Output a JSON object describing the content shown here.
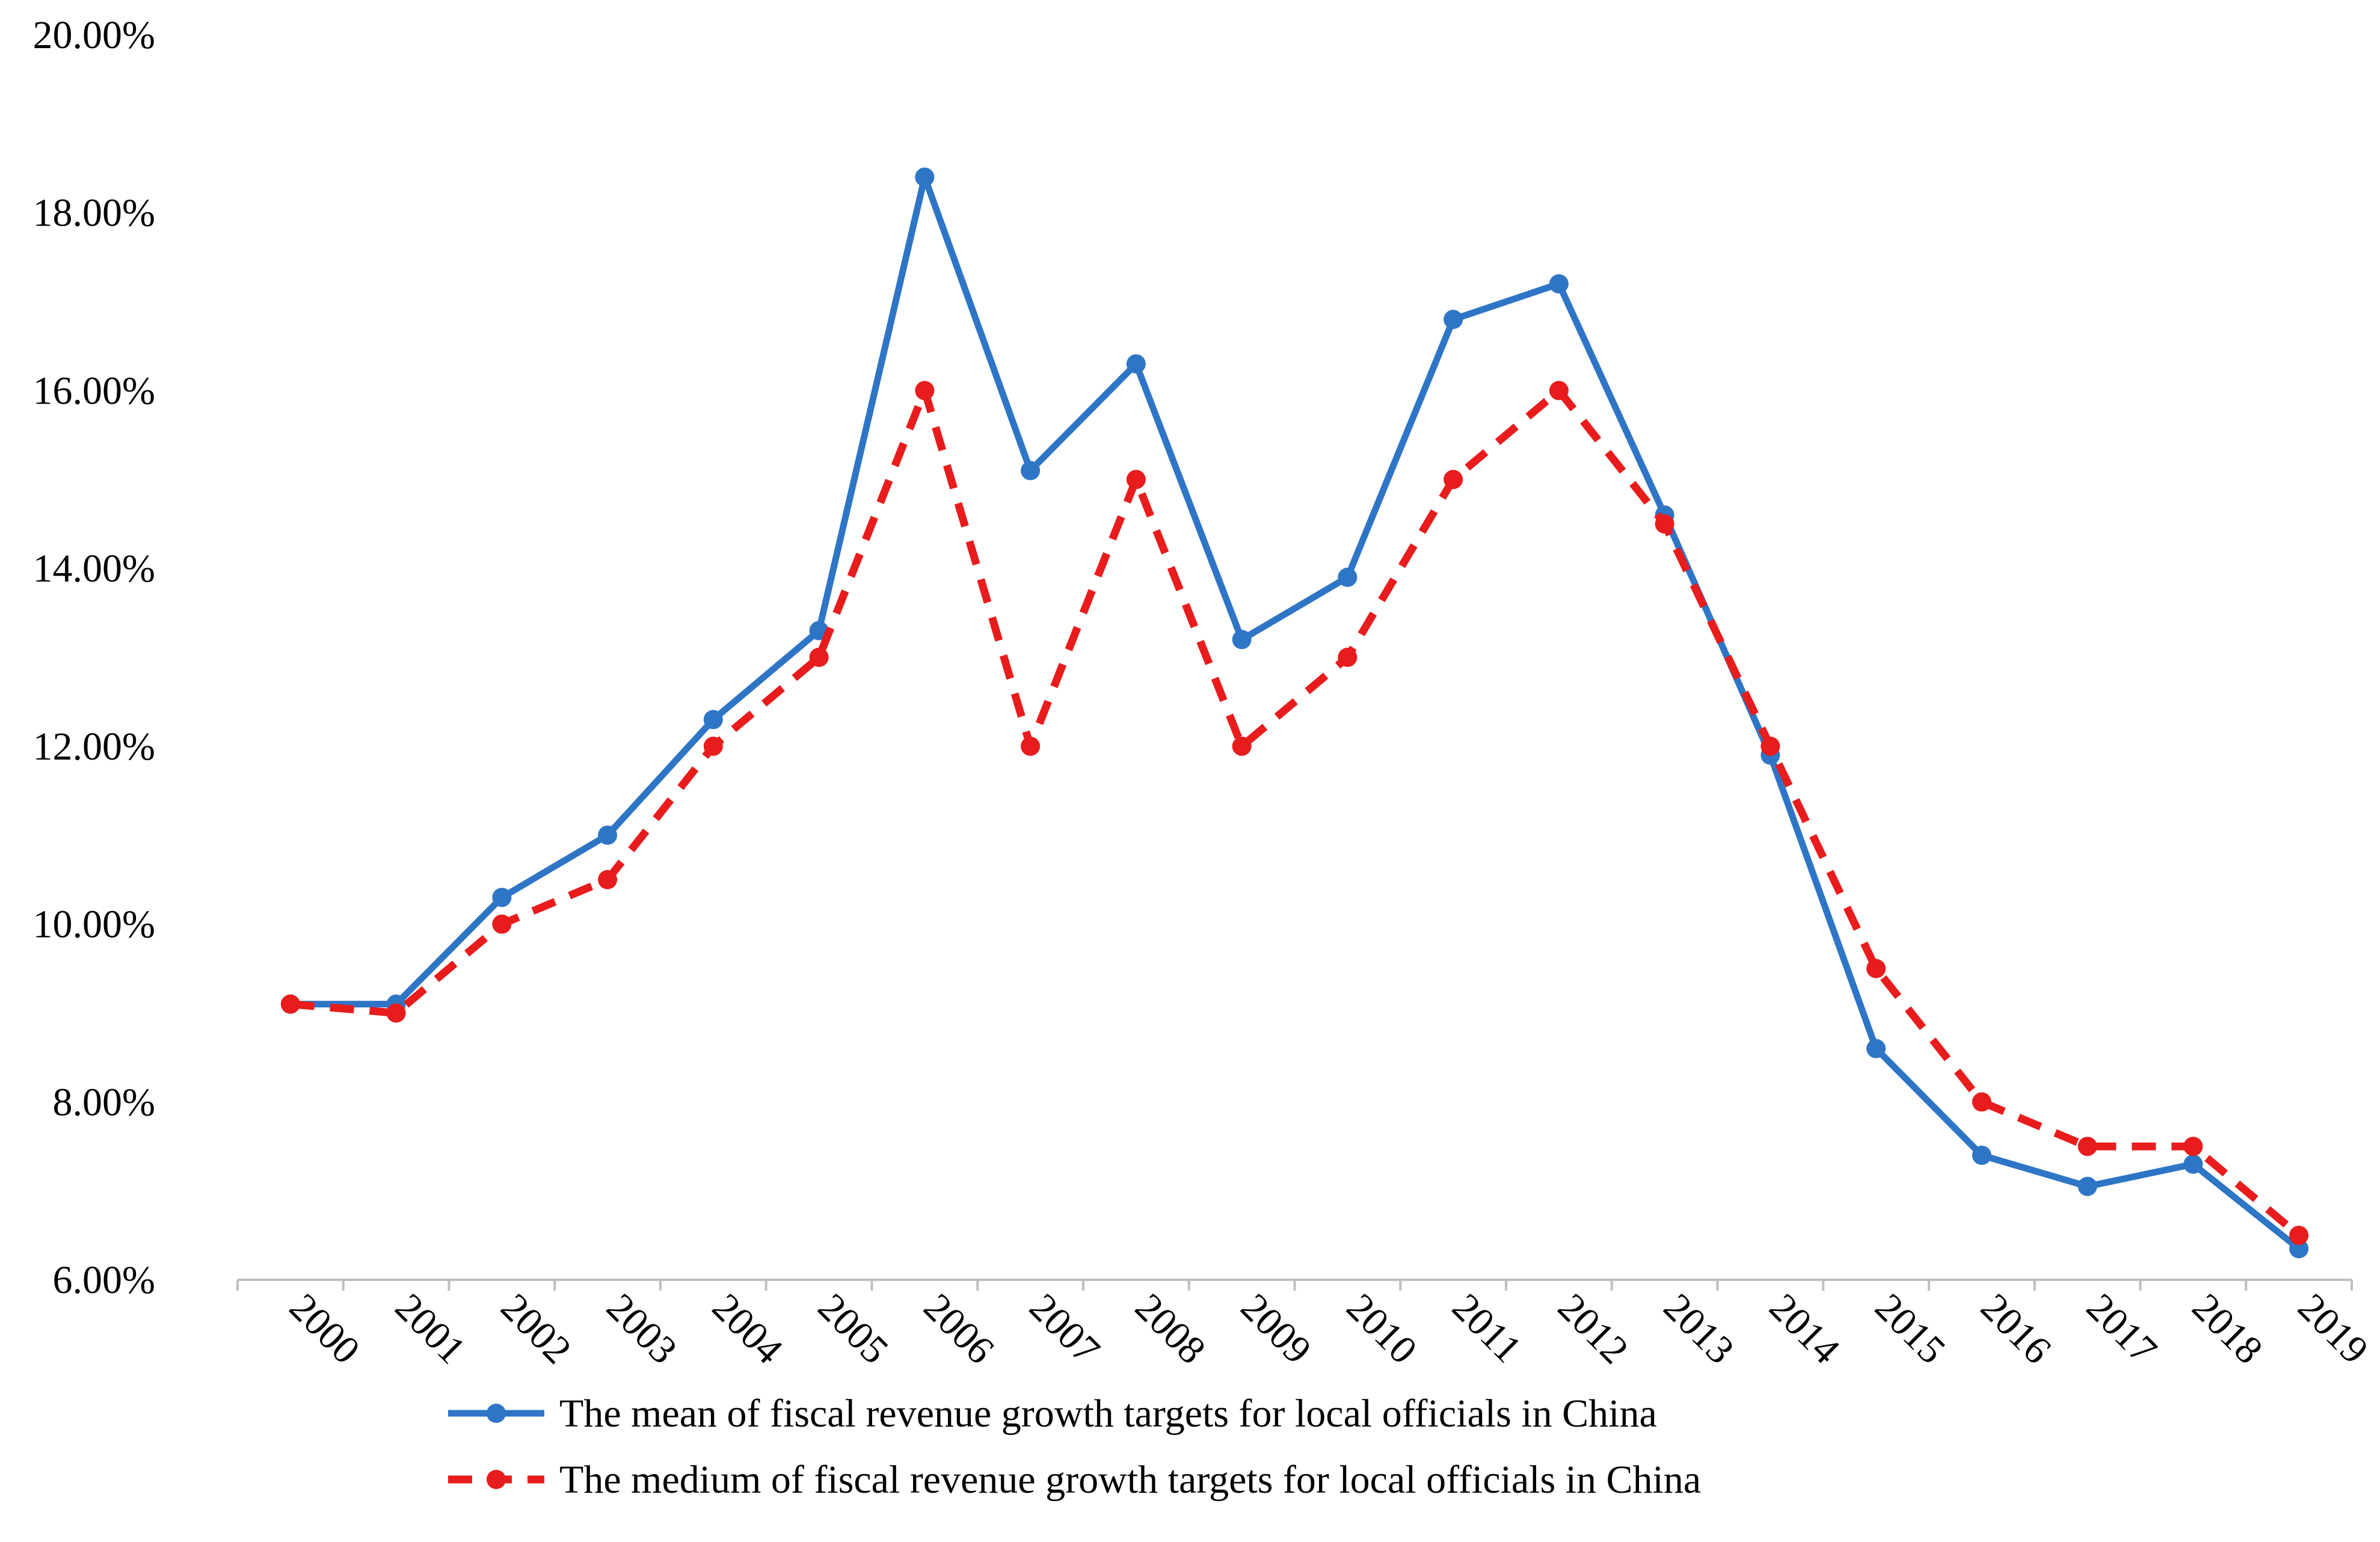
{
  "chart_data": {
    "type": "line",
    "title": "",
    "xlabel": "",
    "ylabel": "",
    "ylim": [
      6,
      20
    ],
    "yticks": [
      "6.00%",
      "8.00%",
      "10.00%",
      "12.00%",
      "14.00%",
      "16.00%",
      "18.00%",
      "20.00%"
    ],
    "categories": [
      "2000",
      "2001",
      "2002",
      "2003",
      "2004",
      "2005",
      "2006",
      "2007",
      "2008",
      "2009",
      "2010",
      "2011",
      "2012",
      "2013",
      "2014",
      "2015",
      "2016",
      "2017",
      "2018",
      "2019"
    ],
    "series": [
      {
        "name": "The mean of fiscal revenue growth targets for local officials in China",
        "color": "#2E75C6",
        "dashed": false,
        "values": [
          9.1,
          9.1,
          10.3,
          11.0,
          12.3,
          13.3,
          18.4,
          15.1,
          16.3,
          13.2,
          13.9,
          16.8,
          17.2,
          14.6,
          11.9,
          8.6,
          7.4,
          7.05,
          7.3,
          6.35
        ]
      },
      {
        "name": "The medium of fiscal revenue growth targets for local officials in China",
        "color": "#E81C1C",
        "dashed": true,
        "values": [
          9.1,
          9.0,
          10.0,
          10.5,
          12.0,
          13.0,
          16.0,
          12.0,
          15.0,
          12.0,
          13.0,
          15.0,
          16.0,
          14.5,
          12.0,
          9.5,
          8.0,
          7.5,
          7.5,
          6.5
        ]
      }
    ],
    "legend_position": "bottom"
  }
}
